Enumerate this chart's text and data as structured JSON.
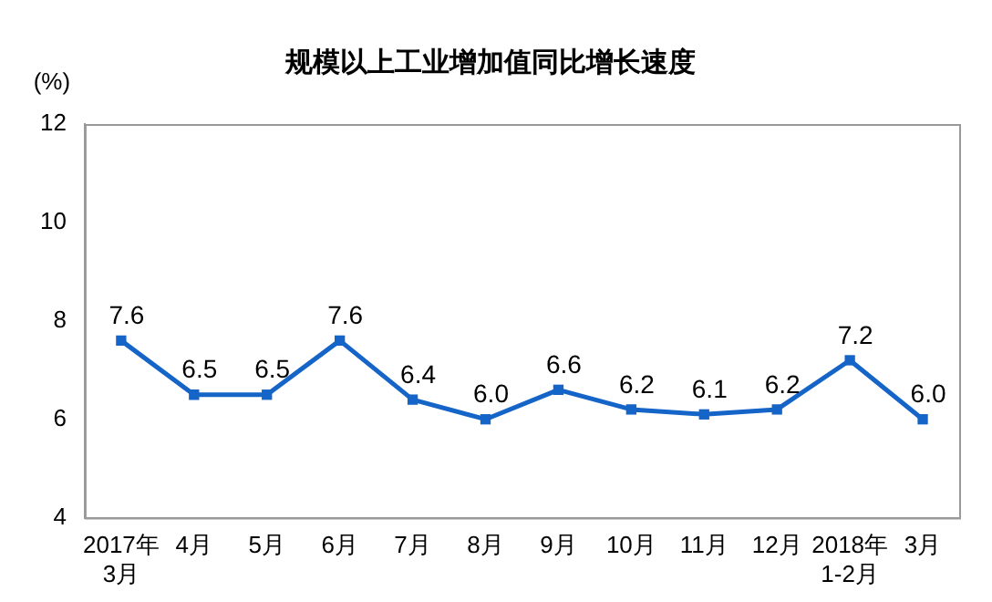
{
  "chart_data": {
    "type": "line",
    "title": "规模以上工业增加值同比增长速度",
    "ylabel": "(%)",
    "categories": [
      "2017年\n3月",
      "4月",
      "5月",
      "6月",
      "7月",
      "8月",
      "9月",
      "10月",
      "11月",
      "12月",
      "2018年\n1-2月",
      "3月"
    ],
    "series": [
      {
        "color": "#1565c8",
        "values": [
          7.6,
          6.5,
          6.5,
          7.6,
          6.4,
          6.0,
          6.6,
          6.2,
          6.1,
          6.2,
          7.2,
          6.0
        ],
        "value_labels": [
          "7.6",
          "6.5",
          "6.5",
          "7.6",
          "6.4",
          "6.0",
          "6.6",
          "6.2",
          "6.1",
          "6.2",
          "7.2",
          "6.0"
        ]
      }
    ],
    "ylim": [
      4,
      12
    ],
    "yticks": [
      4,
      6,
      8,
      10,
      12
    ],
    "grid": false,
    "legend": false,
    "marker": "square",
    "line_style": "solid"
  }
}
